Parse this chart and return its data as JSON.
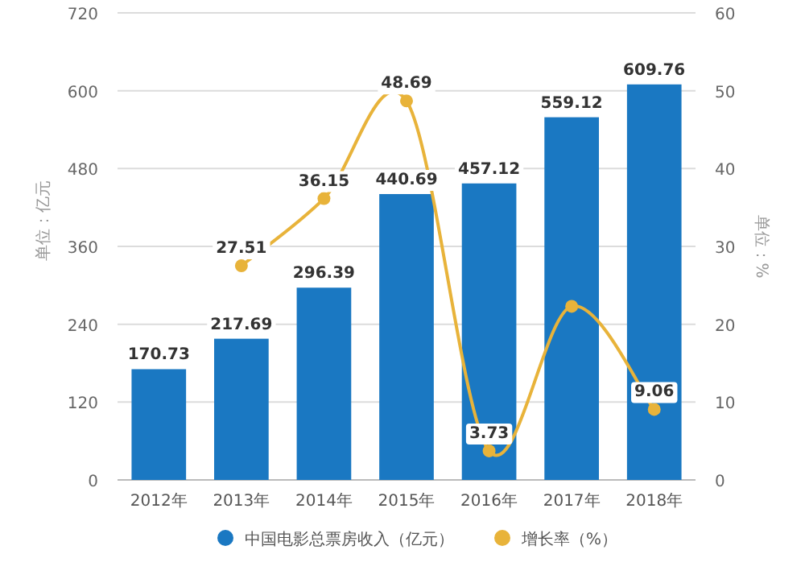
{
  "chart_data": {
    "type": "bar",
    "ylabel": "单位：亿元",
    "y2label": "单位：%",
    "categories": [
      "2012年",
      "2013年",
      "2014年",
      "2015年",
      "2016年",
      "2017年",
      "2018年"
    ],
    "series": [
      {
        "name": "中国电影总票房收入（亿元）",
        "color": "#1a78c2",
        "values": [
          170.73,
          217.69,
          296.39,
          440.69,
          457.12,
          559.12,
          609.76
        ],
        "value_labels": [
          "170.73",
          "217.69",
          "296.39",
          "440.69",
          "457.12",
          "559.12",
          "609.76"
        ]
      },
      {
        "name": "增长率（%）",
        "type": "line",
        "axis": "y2",
        "color": "#e8b33a",
        "marker": "circle",
        "values": [
          null,
          27.51,
          36.15,
          48.69,
          3.73,
          22.3,
          9.06
        ],
        "value_labels": [
          null,
          "27.51",
          "36.15",
          "48.69",
          "3.73",
          null,
          "9.06"
        ]
      }
    ],
    "ylim": [
      0,
      720
    ],
    "yticks": [
      0,
      120,
      240,
      360,
      480,
      600,
      720
    ],
    "y2lim": [
      0,
      60
    ],
    "y2ticks": [
      0,
      10,
      20,
      30,
      40,
      50,
      60
    ],
    "grid": "y",
    "legend": "bottom"
  }
}
